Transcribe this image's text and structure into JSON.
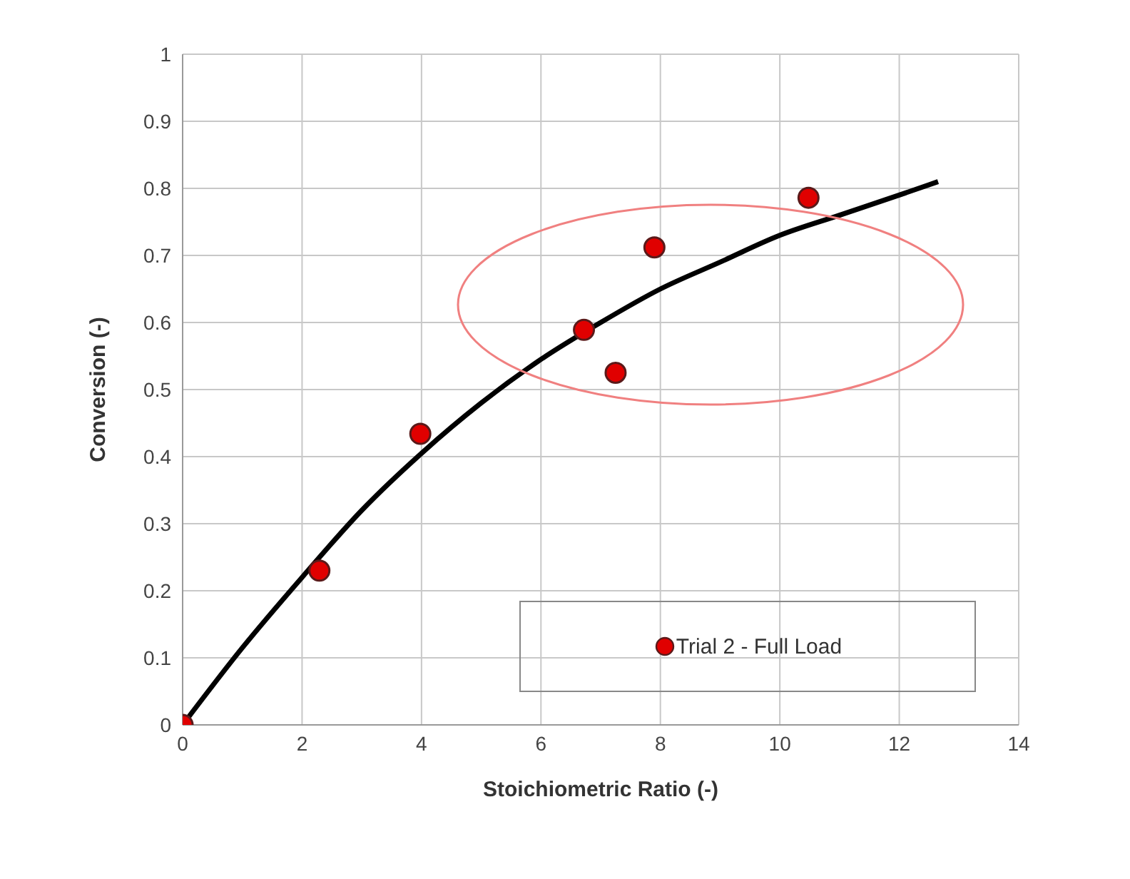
{
  "chart_data": {
    "type": "scatter",
    "xlabel": "Stoichiometric Ratio (-)",
    "ylabel": "Conversion (-)",
    "xlim": [
      0,
      14
    ],
    "xticks": [
      0,
      2,
      4,
      6,
      8,
      10,
      12,
      14
    ],
    "ylim": [
      0,
      1
    ],
    "yticks": [
      0,
      0.1,
      0.2,
      0.3,
      0.4,
      0.5,
      0.6,
      0.7,
      0.8,
      0.9,
      1
    ],
    "grid": true,
    "legend": "bottom right",
    "series": [
      {
        "name": "Trial 2 - Full Load",
        "type": "scatter",
        "marker": "circle",
        "color": "#e00000",
        "x": [
          0,
          2.29,
          3.98,
          6.72,
          7.25,
          7.9,
          10.48
        ],
        "values": [
          0,
          0.23,
          0.434,
          0.589,
          0.525,
          0.712,
          0.786
        ]
      },
      {
        "type": "line",
        "marker": "none",
        "color": "#000000",
        "x": [
          0,
          1,
          2,
          3,
          4,
          5,
          6,
          7,
          8,
          9,
          10,
          11,
          12,
          12.65
        ],
        "values": [
          0,
          0.115,
          0.22,
          0.32,
          0.405,
          0.48,
          0.545,
          0.6,
          0.65,
          0.69,
          0.73,
          0.76,
          0.79,
          0.81
        ]
      }
    ]
  }
}
